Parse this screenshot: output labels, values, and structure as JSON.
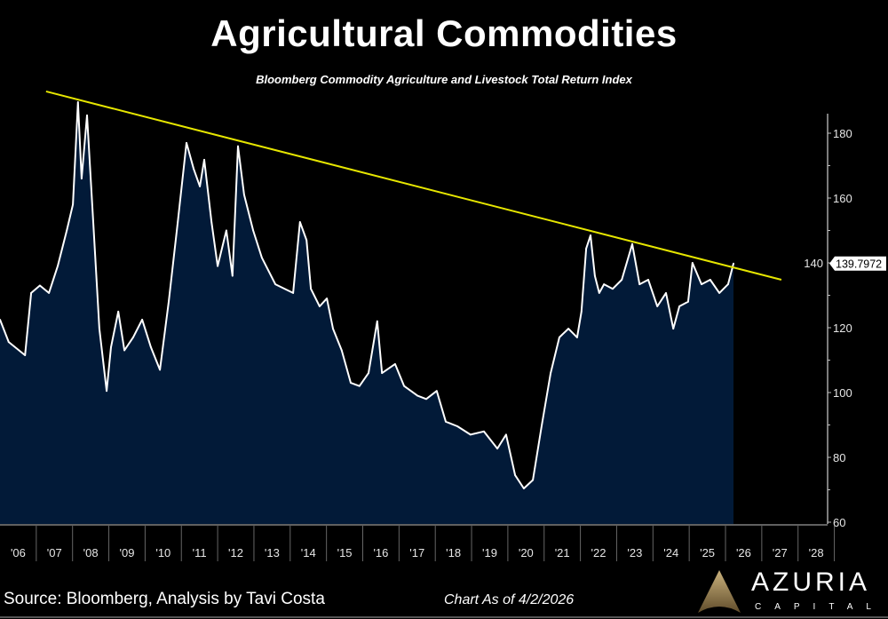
{
  "title": "Agricultural Commodities",
  "subtitle": "Bloomberg Commodity Agriculture and Livestock Total Return Index",
  "footer": {
    "source": "Source: Bloomberg, Analysis by Tavi Costa",
    "as_of": "Chart As of 4/2/2026",
    "logo_name": "AZURIA",
    "logo_sub": "CAPITAL"
  },
  "colors": {
    "background": "#000000",
    "area": "#021a38",
    "line": "#ffffff",
    "trendline": "#e6e600",
    "axis": "#bfbfbf",
    "logo_gold": "#b8975a"
  },
  "chart_data": {
    "type": "area",
    "title": "Agricultural Commodities",
    "subtitle": "Bloomberg Commodity Agriculture and Livestock Total Return Index",
    "xlim": [
      2006,
      2028.7
    ],
    "ylim": [
      60,
      188
    ],
    "y_ticks": [
      60,
      80,
      100,
      120,
      140,
      160,
      180
    ],
    "y_tick_labels": [
      "60",
      "80",
      "100",
      "120",
      "140",
      "160",
      "180"
    ],
    "y_axis_position": "right",
    "x_tick_labels": [
      "'06",
      "'07",
      "'08",
      "'09",
      "'10",
      "'11",
      "'12",
      "'13",
      "'14",
      "'15",
      "'16",
      "'17",
      "'18",
      "'19",
      "'20",
      "'21",
      "'22",
      "'23",
      "'24",
      "'25",
      "'26",
      "'27",
      "'28"
    ],
    "last_value_label": "139.7972",
    "grid": false,
    "series": [
      {
        "points": [
          [
            2006.0,
            122.5
          ],
          [
            2006.24,
            115.6
          ],
          [
            2006.69,
            111.5
          ],
          [
            2006.86,
            130.7
          ],
          [
            2007.1,
            133.0
          ],
          [
            2007.35,
            130.7
          ],
          [
            2007.59,
            139.0
          ],
          [
            2007.84,
            150.0
          ],
          [
            2008.01,
            158.0
          ],
          [
            2008.15,
            189.6
          ],
          [
            2008.25,
            166.0
          ],
          [
            2008.4,
            185.5
          ],
          [
            2008.57,
            152.6
          ],
          [
            2008.74,
            119.7
          ],
          [
            2008.94,
            100.5
          ],
          [
            2009.06,
            114.0
          ],
          [
            2009.26,
            125.0
          ],
          [
            2009.43,
            113.0
          ],
          [
            2009.67,
            117.0
          ],
          [
            2009.92,
            122.5
          ],
          [
            2010.16,
            114.0
          ],
          [
            2010.41,
            107.0
          ],
          [
            2010.65,
            128.0
          ],
          [
            2010.9,
            152.6
          ],
          [
            2011.14,
            177.0
          ],
          [
            2011.34,
            169.0
          ],
          [
            2011.51,
            163.6
          ],
          [
            2011.63,
            171.8
          ],
          [
            2011.83,
            152.6
          ],
          [
            2012.0,
            139.0
          ],
          [
            2012.24,
            150.0
          ],
          [
            2012.41,
            136.0
          ],
          [
            2012.56,
            176.0
          ],
          [
            2012.73,
            161.0
          ],
          [
            2012.98,
            150.0
          ],
          [
            2013.22,
            141.6
          ],
          [
            2013.59,
            133.4
          ],
          [
            2014.08,
            130.7
          ],
          [
            2014.27,
            152.6
          ],
          [
            2014.45,
            147.0
          ],
          [
            2014.57,
            132.0
          ],
          [
            2014.81,
            126.6
          ],
          [
            2015.01,
            129.0
          ],
          [
            2015.18,
            119.7
          ],
          [
            2015.42,
            113.0
          ],
          [
            2015.67,
            103.0
          ],
          [
            2015.91,
            102.0
          ],
          [
            2016.16,
            106.0
          ],
          [
            2016.4,
            122.0
          ],
          [
            2016.53,
            106.0
          ],
          [
            2016.89,
            108.8
          ],
          [
            2017.14,
            102.0
          ],
          [
            2017.51,
            99.0
          ],
          [
            2017.75,
            98.0
          ],
          [
            2018.04,
            100.5
          ],
          [
            2018.29,
            91.0
          ],
          [
            2018.61,
            89.6
          ],
          [
            2018.97,
            87.0
          ],
          [
            2019.34,
            88.0
          ],
          [
            2019.71,
            82.7
          ],
          [
            2019.95,
            87.0
          ],
          [
            2020.2,
            74.5
          ],
          [
            2020.44,
            70.4
          ],
          [
            2020.69,
            73.0
          ],
          [
            2020.93,
            89.6
          ],
          [
            2021.18,
            106.0
          ],
          [
            2021.42,
            117.0
          ],
          [
            2021.67,
            119.7
          ],
          [
            2021.91,
            117.0
          ],
          [
            2022.03,
            125.0
          ],
          [
            2022.16,
            144.4
          ],
          [
            2022.28,
            148.5
          ],
          [
            2022.4,
            136.0
          ],
          [
            2022.52,
            130.7
          ],
          [
            2022.65,
            133.4
          ],
          [
            2022.89,
            132.0
          ],
          [
            2023.14,
            134.8
          ],
          [
            2023.43,
            145.8
          ],
          [
            2023.63,
            133.4
          ],
          [
            2023.87,
            134.8
          ],
          [
            2024.12,
            126.6
          ],
          [
            2024.36,
            130.7
          ],
          [
            2024.56,
            119.7
          ],
          [
            2024.73,
            126.6
          ],
          [
            2024.97,
            128.0
          ],
          [
            2025.09,
            140.0
          ],
          [
            2025.34,
            133.4
          ],
          [
            2025.58,
            134.8
          ],
          [
            2025.83,
            130.7
          ],
          [
            2026.07,
            133.4
          ],
          [
            2026.22,
            139.8
          ]
        ]
      }
    ],
    "trendline": [
      [
        2007.27,
        192.9
      ],
      [
        2027.54,
        134.8
      ]
    ]
  }
}
